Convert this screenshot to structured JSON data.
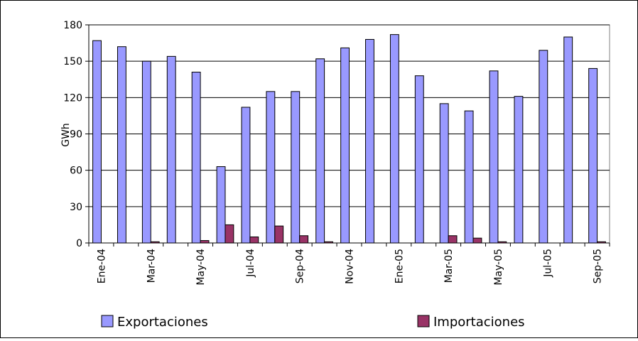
{
  "chart_data": {
    "type": "bar",
    "y_label": "GWh",
    "categories": [
      "Ene-04",
      null,
      "Mar-04",
      null,
      "May-04",
      null,
      "Jul-04",
      null,
      "Sep-04",
      null,
      "Nov-04",
      null,
      "Ene-05",
      null,
      "Mar-05",
      null,
      "May-05",
      null,
      "Jul-05",
      null,
      "Sep-05"
    ],
    "series": [
      {
        "name": "Exportaciones",
        "color": "#9999ff",
        "values": [
          167,
          162,
          150,
          154,
          141,
          63,
          112,
          125,
          125,
          152,
          161,
          168,
          172,
          138,
          115,
          109,
          142,
          121,
          159,
          170,
          144
        ]
      },
      {
        "name": "Importaciones",
        "color": "#993366",
        "values": [
          0,
          0,
          1,
          0,
          2,
          15,
          5,
          14,
          6,
          1,
          0,
          0,
          0,
          0,
          6,
          4,
          1,
          0,
          0,
          0,
          1
        ]
      }
    ],
    "ylim": [
      0,
      180
    ],
    "yticks": [
      0,
      30,
      60,
      90,
      120,
      150,
      180
    ],
    "grid": true,
    "legend": "bottom"
  }
}
